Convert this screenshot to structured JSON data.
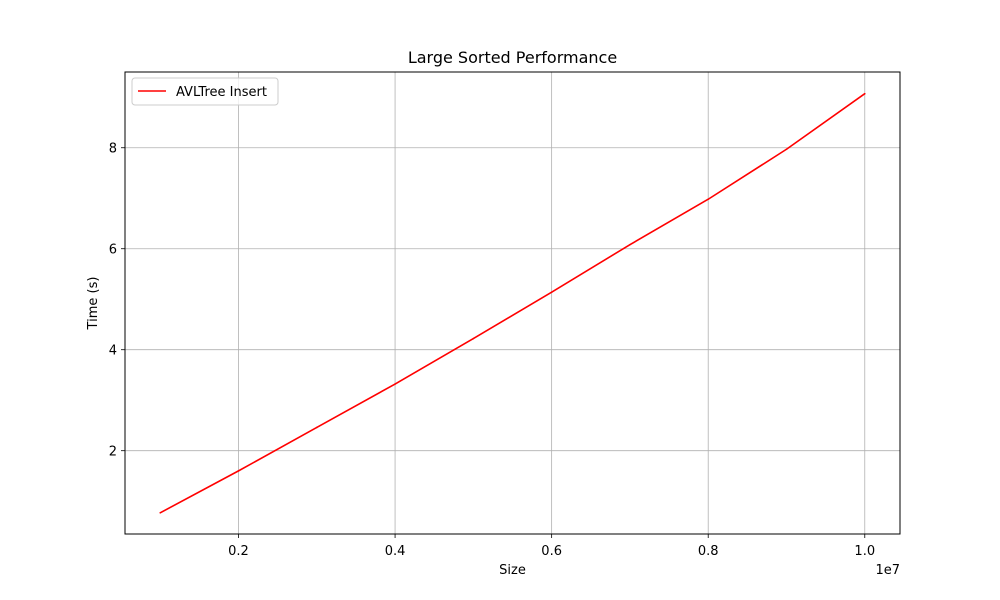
{
  "chart_data": {
    "type": "line",
    "title": "Large Sorted Performance",
    "xlabel": "Size",
    "ylabel": "Time (s)",
    "x_offset_label": "1e7",
    "xlim": [
      550000,
      10450000
    ],
    "ylim": [
      0.35,
      9.5
    ],
    "x_ticks": [
      2000000,
      4000000,
      6000000,
      8000000,
      10000000
    ],
    "x_tick_labels": [
      "0.2",
      "0.4",
      "0.6",
      "0.8",
      "1.0"
    ],
    "y_ticks": [
      2,
      4,
      6,
      8
    ],
    "y_tick_labels": [
      "2",
      "4",
      "6",
      "8"
    ],
    "grid": true,
    "legend_position": "upper-left",
    "series": [
      {
        "name": "AVLTree Insert",
        "color": "#ff0000",
        "x": [
          1000000,
          2000000,
          3000000,
          4000000,
          5000000,
          6000000,
          7000000,
          8000000,
          9000000,
          10000000
        ],
        "y": [
          0.77,
          1.6,
          2.46,
          3.32,
          4.22,
          5.14,
          6.08,
          6.98,
          7.97,
          9.07
        ]
      }
    ]
  }
}
